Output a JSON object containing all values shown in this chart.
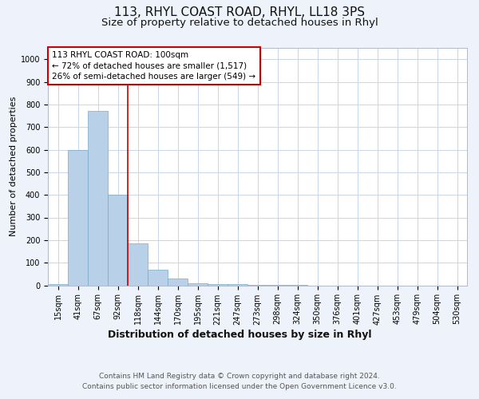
{
  "title1": "113, RHYL COAST ROAD, RHYL, LL18 3PS",
  "title2": "Size of property relative to detached houses in Rhyl",
  "xlabel": "Distribution of detached houses by size in Rhyl",
  "ylabel": "Number of detached properties",
  "categories": [
    "15sqm",
    "41sqm",
    "67sqm",
    "92sqm",
    "118sqm",
    "144sqm",
    "170sqm",
    "195sqm",
    "221sqm",
    "247sqm",
    "273sqm",
    "298sqm",
    "324sqm",
    "350sqm",
    "376sqm",
    "401sqm",
    "427sqm",
    "453sqm",
    "479sqm",
    "504sqm",
    "530sqm"
  ],
  "values": [
    5,
    600,
    770,
    400,
    185,
    70,
    30,
    10,
    5,
    5,
    3,
    2,
    1,
    0,
    0,
    0,
    0,
    0,
    0,
    0,
    0
  ],
  "bar_color": "#b8d0e8",
  "bar_edge_color": "#7aaac8",
  "vline_x": 3.5,
  "vline_color": "#cc0000",
  "annotation_text": "113 RHYL COAST ROAD: 100sqm\n← 72% of detached houses are smaller (1,517)\n26% of semi-detached houses are larger (549) →",
  "annotation_box_color": "#ffffff",
  "annotation_box_edge": "#cc0000",
  "ylim": [
    0,
    1050
  ],
  "yticks": [
    0,
    100,
    200,
    300,
    400,
    500,
    600,
    700,
    800,
    900,
    1000
  ],
  "footnote": "Contains HM Land Registry data © Crown copyright and database right 2024.\nContains public sector information licensed under the Open Government Licence v3.0.",
  "bg_color": "#eef2fb",
  "axes_bg_color": "#ffffff",
  "grid_color": "#c8d4e8",
  "title1_fontsize": 11,
  "title2_fontsize": 9.5,
  "xlabel_fontsize": 9,
  "ylabel_fontsize": 8,
  "tick_fontsize": 7,
  "footnote_fontsize": 6.5,
  "ann_fontsize": 7.5
}
